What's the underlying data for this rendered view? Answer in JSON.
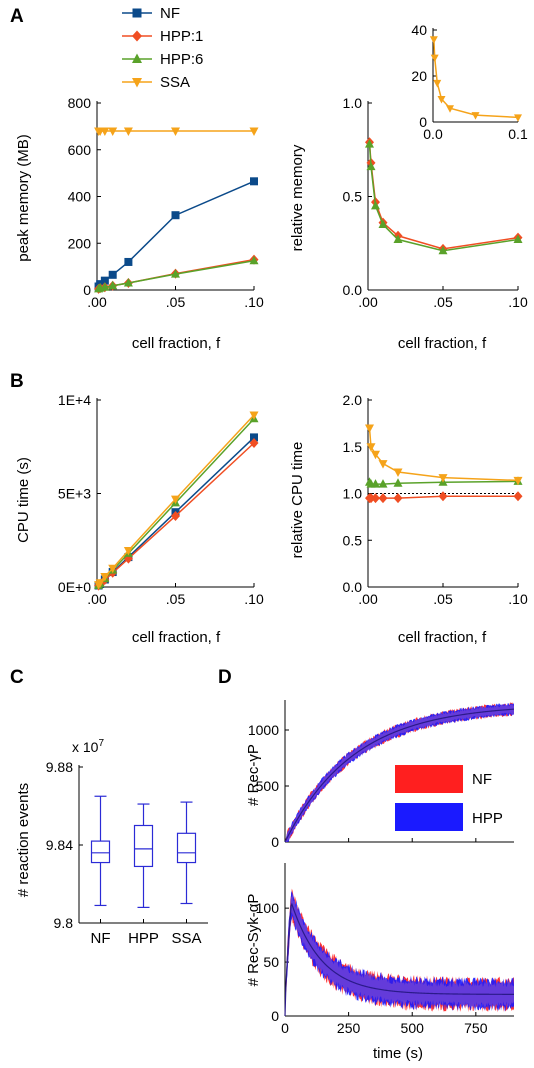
{
  "colors": {
    "NF": "#0b4a8a",
    "HPP1": "#f04e23",
    "HPP6": "#5aa22a",
    "SSA": "#f5a31a",
    "box": "#2b2bd6",
    "tsNF": "#ff1f1f",
    "tsHPP": "#1a1aff",
    "tsMix": "#6a3fd8",
    "tsMean": "#2b1a8a"
  },
  "legend": {
    "items": [
      {
        "label": "NF",
        "marker": "square",
        "color": "#0b4a8a"
      },
      {
        "label": "HPP:1",
        "marker": "diamond",
        "color": "#f04e23"
      },
      {
        "label": "HPP:6",
        "marker": "triangle-up",
        "color": "#5aa22a"
      },
      {
        "label": "SSA",
        "marker": "triangle-down",
        "color": "#f5a31a"
      }
    ]
  },
  "panel_labels": {
    "A": "A",
    "B": "B",
    "C": "C",
    "D": "D"
  },
  "chart_data": [
    {
      "id": "A-left",
      "type": "line",
      "xlabel": "cell fraction, f",
      "ylabel": "peak memory (MB)",
      "xlim": [
        0,
        0.1
      ],
      "ylim": [
        0,
        800
      ],
      "xticks": [
        0,
        0.05,
        0.1
      ],
      "xticklabels": [
        ".00",
        ".05",
        ".10"
      ],
      "yticks": [
        0,
        200,
        400,
        600,
        800
      ],
      "yticklabels": [
        "0",
        "200",
        "400",
        "600",
        "800"
      ],
      "x": [
        0.001,
        0.002,
        0.005,
        0.01,
        0.02,
        0.05,
        0.1
      ],
      "series": [
        {
          "name": "NF",
          "key": "NF",
          "marker": "square",
          "values": [
            15,
            25,
            40,
            65,
            120,
            320,
            465
          ]
        },
        {
          "name": "HPP:1",
          "key": "HPP1",
          "marker": "diamond",
          "values": [
            5,
            8,
            12,
            18,
            30,
            70,
            130
          ]
        },
        {
          "name": "HPP:6",
          "key": "HPP6",
          "marker": "triangle-up",
          "values": [
            5,
            8,
            12,
            18,
            30,
            68,
            125
          ]
        },
        {
          "name": "SSA",
          "key": "SSA",
          "marker": "triangle-down",
          "values": [
            680,
            680,
            680,
            680,
            680,
            680,
            680
          ]
        }
      ]
    },
    {
      "id": "A-right",
      "type": "line",
      "xlabel": "cell fraction, f",
      "ylabel": "relative memory",
      "xlim": [
        0,
        0.1
      ],
      "ylim": [
        0,
        1
      ],
      "xticks": [
        0,
        0.05,
        0.1
      ],
      "xticklabels": [
        ".00",
        ".05",
        ".10"
      ],
      "yticks": [
        0,
        0.5,
        1
      ],
      "yticklabels": [
        "0.0",
        "0.5",
        "1.0"
      ],
      "x": [
        0.001,
        0.002,
        0.005,
        0.01,
        0.02,
        0.05,
        0.1
      ],
      "series": [
        {
          "name": "HPP:1",
          "key": "HPP1",
          "marker": "diamond",
          "values": [
            0.79,
            0.68,
            0.47,
            0.36,
            0.29,
            0.22,
            0.28
          ]
        },
        {
          "name": "HPP:6",
          "key": "HPP6",
          "marker": "triangle-up",
          "values": [
            0.78,
            0.66,
            0.45,
            0.35,
            0.27,
            0.21,
            0.27
          ]
        }
      ]
    },
    {
      "id": "A-inset",
      "type": "line",
      "xlim": [
        0,
        0.1
      ],
      "ylim": [
        0,
        40
      ],
      "xticks": [
        0,
        0.1
      ],
      "xticklabels": [
        "0.0",
        "0.1"
      ],
      "yticks": [
        0,
        20,
        40
      ],
      "yticklabels": [
        "0",
        "20",
        "40"
      ],
      "x": [
        0.001,
        0.002,
        0.005,
        0.01,
        0.02,
        0.05,
        0.1
      ],
      "series": [
        {
          "name": "SSA",
          "key": "SSA",
          "marker": "triangle-down",
          "values": [
            36,
            28,
            17,
            10,
            6,
            3,
            2
          ]
        }
      ]
    },
    {
      "id": "B-left",
      "type": "line",
      "xlabel": "cell fraction, f",
      "ylabel": "CPU time (s)",
      "xlim": [
        0,
        0.1
      ],
      "ylim": [
        0,
        10000
      ],
      "xticks": [
        0,
        0.05,
        0.1
      ],
      "xticklabels": [
        ".00",
        ".05",
        ".10"
      ],
      "yticks": [
        0,
        5000,
        10000
      ],
      "yticklabels": [
        "0E+0",
        "5E+3",
        "1E+4"
      ],
      "x": [
        0.001,
        0.002,
        0.005,
        0.01,
        0.02,
        0.05,
        0.1
      ],
      "series": [
        {
          "name": "NF",
          "key": "NF",
          "marker": "square",
          "values": [
            80,
            160,
            400,
            800,
            1600,
            4000,
            8000
          ]
        },
        {
          "name": "HPP:1",
          "key": "HPP1",
          "marker": "diamond",
          "values": [
            75,
            150,
            380,
            760,
            1520,
            3800,
            7700
          ]
        },
        {
          "name": "HPP:6",
          "key": "HPP6",
          "marker": "triangle-up",
          "values": [
            90,
            180,
            450,
            900,
            1800,
            4500,
            9000
          ]
        },
        {
          "name": "SSA",
          "key": "SSA",
          "marker": "triangle-down",
          "values": [
            130,
            230,
            560,
            1000,
            1950,
            4700,
            9200
          ]
        }
      ]
    },
    {
      "id": "B-right",
      "type": "line",
      "xlabel": "cell fraction, f",
      "ylabel": "relative CPU time",
      "xlim": [
        0,
        0.1
      ],
      "ylim": [
        0,
        2
      ],
      "xticks": [
        0,
        0.05,
        0.1
      ],
      "xticklabels": [
        ".00",
        ".05",
        ".10"
      ],
      "yticks": [
        0,
        0.5,
        1,
        1.5,
        2
      ],
      "yticklabels": [
        "0.0",
        "0.5",
        "1.0",
        "1.5",
        "2.0"
      ],
      "refline": 1,
      "x": [
        0.001,
        0.002,
        0.005,
        0.01,
        0.02,
        0.05,
        0.1
      ],
      "series": [
        {
          "name": "HPP:1",
          "key": "HPP1",
          "marker": "diamond",
          "values": [
            0.95,
            0.95,
            0.95,
            0.95,
            0.95,
            0.97,
            0.97
          ]
        },
        {
          "name": "HPP:6",
          "key": "HPP6",
          "marker": "triangle-up",
          "values": [
            1.12,
            1.1,
            1.1,
            1.1,
            1.11,
            1.12,
            1.13
          ]
        },
        {
          "name": "SSA",
          "key": "SSA",
          "marker": "triangle-down",
          "values": [
            1.7,
            1.5,
            1.42,
            1.32,
            1.23,
            1.17,
            1.14
          ]
        }
      ]
    },
    {
      "id": "C",
      "type": "box",
      "ylabel": "# reaction events",
      "yexp": "x 10",
      "ylim": [
        9.8,
        9.88
      ],
      "yticks": [
        9.8,
        9.84,
        9.88
      ],
      "yticklabels": [
        "9.8",
        "9.84",
        "9.88"
      ],
      "categories": [
        "NF",
        "HPP",
        "SSA"
      ],
      "boxes": [
        {
          "min": 9.809,
          "q1": 9.831,
          "median": 9.836,
          "q3": 9.842,
          "max": 9.865
        },
        {
          "min": 9.808,
          "q1": 9.829,
          "median": 9.838,
          "q3": 9.85,
          "max": 9.861
        },
        {
          "min": 9.81,
          "q1": 9.831,
          "median": 9.836,
          "q3": 9.846,
          "max": 9.862
        }
      ]
    },
    {
      "id": "D-top",
      "type": "area",
      "ylabel": "# Rec-γP",
      "xlim": [
        0,
        900
      ],
      "ylim": [
        0,
        1250
      ],
      "xticks": [
        0,
        250,
        500,
        750
      ],
      "yticks": [
        0,
        500,
        1000
      ],
      "yticklabels": [
        "0",
        "500",
        "1000"
      ],
      "model": {
        "kind": "saturating",
        "amplitude": 1230,
        "tau": 270,
        "band": 55
      }
    },
    {
      "id": "D-bottom",
      "type": "area",
      "ylabel": "# Rec-Syk-αP",
      "xlabel": "time (s)",
      "xlim": [
        0,
        900
      ],
      "ylim": [
        0,
        140
      ],
      "xticks": [
        0,
        250,
        500,
        750
      ],
      "xticklabels": [
        "0",
        "250",
        "500",
        "750"
      ],
      "yticks": [
        0,
        50,
        100
      ],
      "yticklabels": [
        "0",
        "50",
        "100"
      ],
      "model": {
        "kind": "peak",
        "peak": 105,
        "peak_time": 25,
        "plateau": 20,
        "tau": 120,
        "band": 14
      }
    }
  ],
  "d_legend": [
    {
      "label": "NF",
      "color": "#ff1f1f"
    },
    {
      "label": "HPP",
      "color": "#1a1aff"
    }
  ]
}
